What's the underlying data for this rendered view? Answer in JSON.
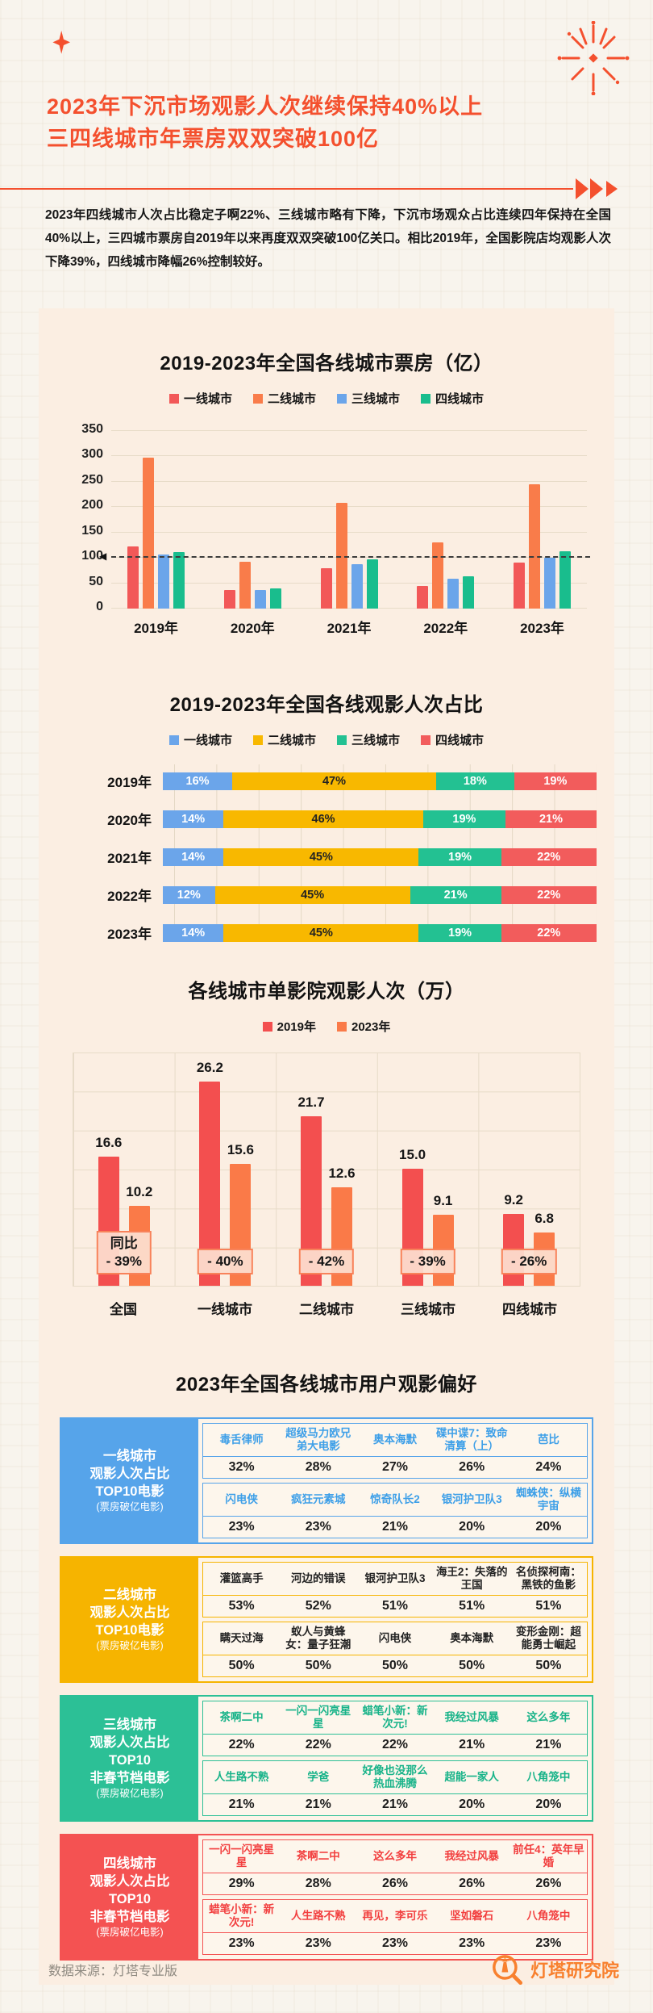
{
  "header": {
    "title_line1": "2023年下沉市场观影人次继续保持40%以上",
    "title_line2": "三四线城市年票房双双突破100亿",
    "intro": "2023年四线城市人次占比稳定子啊22%、三线城市略有下降，下沉市场观众占比连续四年保持在全国40%以上，三四城市票房自2019年以来再度双双突破100亿关口。相比2019年，全国影院店均观影人次下降39%，四线城市降幅26%控制较好。"
  },
  "colors": {
    "accent_red": "#f4502e",
    "card_bg": "#fbeee2",
    "page_bg": "#f8f4ed",
    "brand_orange": "#f8802e",
    "badge_border": "#f8825a"
  },
  "icons": {
    "sparkle-icon": "four-point star",
    "firework-icon": "radial burst",
    "triple-arrow-icon": "▶▶▶",
    "lighthouse-logo-icon": "magnifier with lighthouse",
    "left-arrow-icon": "◀"
  },
  "chart_data": [
    {
      "type": "bar",
      "subtype": "grouped-vertical",
      "title": "2019-2023年全国各线城市票房（亿）",
      "categories": [
        "2019年",
        "2020年",
        "2021年",
        "2022年",
        "2023年"
      ],
      "series": [
        {
          "name": "一线城市",
          "color": "#f25858",
          "values": [
            122,
            37,
            79,
            45,
            91
          ]
        },
        {
          "name": "二线城市",
          "color": "#f97c4a",
          "values": [
            298,
            92,
            208,
            131,
            245
          ]
        },
        {
          "name": "三线城市",
          "color": "#6ba5ea",
          "values": [
            107,
            36,
            87,
            59,
            100
          ]
        },
        {
          "name": "四线城市",
          "color": "#19bd8d",
          "values": [
            111,
            40,
            97,
            64,
            113
          ]
        }
      ],
      "ylim": [
        0,
        350
      ],
      "yticks": [
        0,
        50,
        100,
        150,
        200,
        250,
        300,
        350
      ],
      "reference_line": 100,
      "legend_position": "top",
      "grid": "horizontal"
    },
    {
      "type": "bar",
      "subtype": "stacked-horizontal-100pct",
      "title": "2019-2023年全国各线观影人次占比",
      "categories": [
        "2019年",
        "2020年",
        "2021年",
        "2022年",
        "2023年"
      ],
      "unit": "%",
      "series": [
        {
          "name": "一线城市",
          "color": "#6ba5ea",
          "text_color": "#ffffff",
          "values": [
            16,
            14,
            14,
            12,
            14
          ]
        },
        {
          "name": "二线城市",
          "color": "#f8b800",
          "text_color": "#222222",
          "values": [
            47,
            46,
            45,
            45,
            45
          ]
        },
        {
          "name": "三线城市",
          "color": "#23c192",
          "text_color": "#ffffff",
          "values": [
            18,
            19,
            19,
            21,
            19
          ]
        },
        {
          "name": "四线城市",
          "color": "#f25c5c",
          "text_color": "#ffffff",
          "values": [
            19,
            21,
            22,
            22,
            22
          ]
        }
      ],
      "legend_position": "top",
      "grid": "vertical"
    },
    {
      "type": "bar",
      "subtype": "grouped-pairs",
      "title": "各线城市单影院观影人次（万）",
      "categories": [
        "全国",
        "一线城市",
        "二线城市",
        "三线城市",
        "四线城市"
      ],
      "series": [
        {
          "name": "2019年",
          "color": "#f34f4f",
          "values": [
            16.6,
            26.2,
            21.7,
            15.0,
            9.2
          ],
          "labels": [
            "16.6",
            "26.2",
            "21.7",
            "15.0",
            "9.2"
          ]
        },
        {
          "name": "2023年",
          "color": "#fa7a48",
          "values": [
            10.2,
            15.6,
            12.6,
            9.1,
            6.8
          ],
          "labels": [
            "10.2",
            "15.6",
            "12.6",
            "9.1",
            "6.8"
          ]
        }
      ],
      "ylim": [
        0,
        30
      ],
      "yoy_badges": [
        {
          "label": "同比",
          "value": "- 39%"
        },
        {
          "value": "- 40%"
        },
        {
          "value": "- 42%"
        },
        {
          "value": "- 39%"
        },
        {
          "value": "- 26%"
        }
      ],
      "legend_position": "top",
      "grid": "both"
    }
  ],
  "preferences": {
    "title": "2023年全国各线城市用户观影偏好",
    "tables": [
      {
        "accent": "#56a4ea",
        "movie_color": "#3d9fe8",
        "label_lines": [
          "一线城市",
          "观影人次占比",
          "TOP10电影",
          "(票房破亿电影)"
        ],
        "rows": [
          {
            "movies": [
              "毒舌律师",
              "超级马力欧兄弟大电影",
              "奥本海默",
              "碟中谍7：致命清算（上）",
              "芭比"
            ],
            "values": [
              "32%",
              "28%",
              "27%",
              "26%",
              "24%"
            ]
          },
          {
            "movies": [
              "闪电侠",
              "疯狂元素城",
              "惊奇队长2",
              "银河护卫队3",
              "蜘蛛侠：纵横宇宙"
            ],
            "values": [
              "23%",
              "23%",
              "21%",
              "20%",
              "20%"
            ]
          }
        ]
      },
      {
        "accent": "#f6b400",
        "movie_color": "#222222",
        "label_lines": [
          "二线城市",
          "观影人次占比",
          "TOP10电影",
          "(票房破亿电影)"
        ],
        "rows": [
          {
            "movies": [
              "灌篮高手",
              "河边的错误",
              "银河护卫队3",
              "海王2：失落的王国",
              "名侦探柯南：黑铁的鱼影"
            ],
            "values": [
              "53%",
              "52%",
              "51%",
              "51%",
              "51%"
            ]
          },
          {
            "movies": [
              "瞒天过海",
              "蚁人与黄蜂女：量子狂潮",
              "闪电侠",
              "奥本海默",
              "变形金刚：超能勇士崛起"
            ],
            "values": [
              "50%",
              "50%",
              "50%",
              "50%",
              "50%"
            ]
          }
        ]
      },
      {
        "accent": "#2cc096",
        "movie_color": "#18b389",
        "label_lines": [
          "三线城市",
          "观影人次占比",
          "TOP10",
          "非春节档电影",
          "(票房破亿电影)"
        ],
        "rows": [
          {
            "movies": [
              "茶啊二中",
              "一闪一闪亮星星",
              "蜡笔小新：新次元!",
              "我经过风暴",
              "这么多年"
            ],
            "values": [
              "22%",
              "22%",
              "22%",
              "21%",
              "21%"
            ]
          },
          {
            "movies": [
              "人生路不熟",
              "学爸",
              "好像也没那么热血沸腾",
              "超能一家人",
              "八角笼中"
            ],
            "values": [
              "21%",
              "21%",
              "21%",
              "20%",
              "20%"
            ]
          }
        ]
      },
      {
        "accent": "#f45252",
        "movie_color": "#f23f3f",
        "label_lines": [
          "四线城市",
          "观影人次占比",
          "TOP10",
          "非春节档电影",
          "(票房破亿电影)"
        ],
        "rows": [
          {
            "movies": [
              "一闪一闪亮星星",
              "茶啊二中",
              "这么多年",
              "我经过风暴",
              "前任4：英年早婚"
            ],
            "values": [
              "29%",
              "28%",
              "26%",
              "26%",
              "26%"
            ]
          },
          {
            "movies": [
              "蜡笔小新：新次元!",
              "人生路不熟",
              "再见，李可乐",
              "坚如磐石",
              "八角笼中"
            ],
            "values": [
              "23%",
              "23%",
              "23%",
              "23%",
              "23%"
            ]
          }
        ]
      }
    ]
  },
  "footer": {
    "source": "数据来源：灯塔专业版",
    "brand": "灯塔研究院"
  }
}
